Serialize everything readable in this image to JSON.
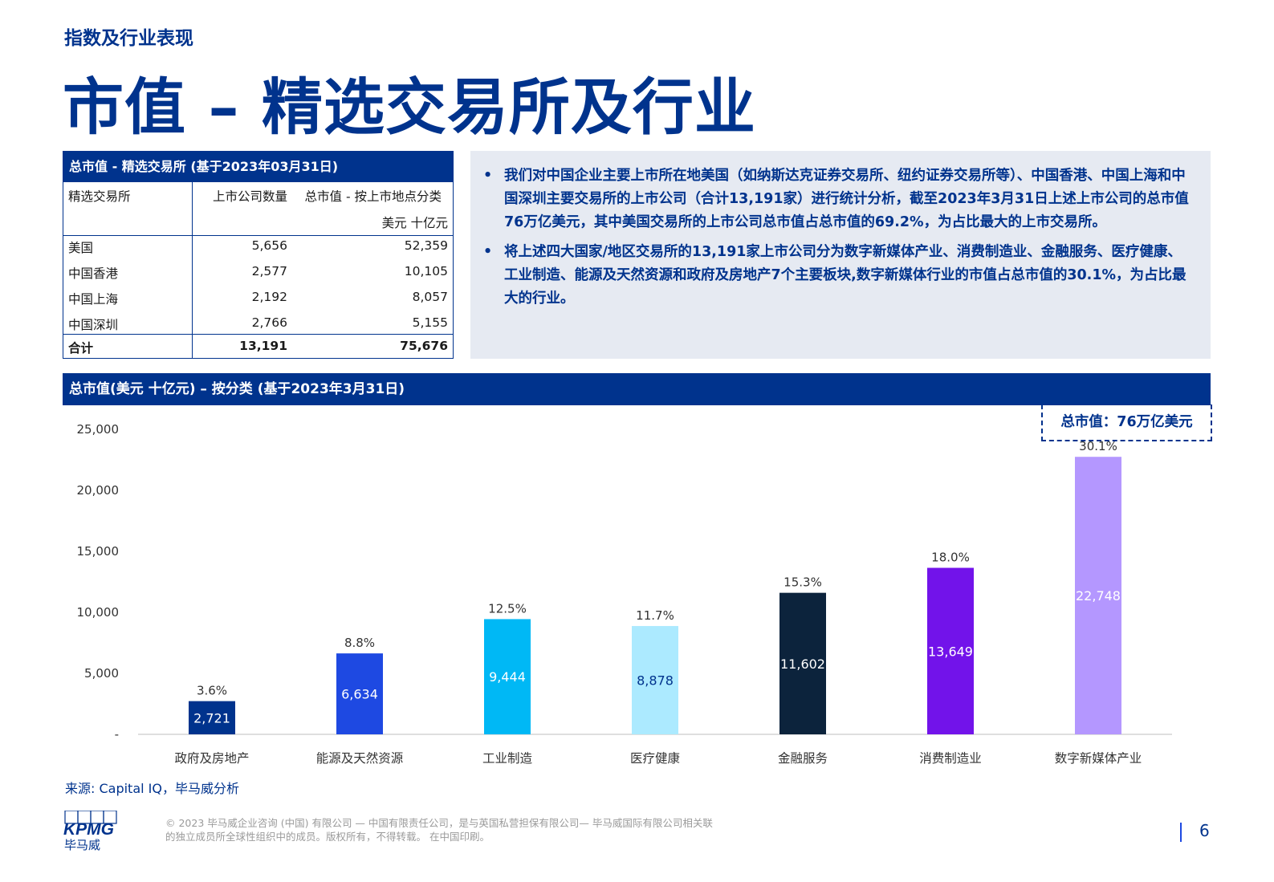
{
  "section_label": "指数及行业表现",
  "page_title": "市值 – 精选交易所及行业",
  "exchange_table": {
    "title": "总市值 - 精选交易所 (基于2023年03月31日)",
    "col_exchange": "精选交易所",
    "col_count": "上市公司数量",
    "col_value": "总市值 - 按上市地点分类",
    "unit": "美元 十亿元",
    "rows": [
      {
        "exchange": "美国",
        "count": "5,656",
        "value": "52,359"
      },
      {
        "exchange": "中国香港",
        "count": "2,577",
        "value": "10,105"
      },
      {
        "exchange": "中国上海",
        "count": "2,192",
        "value": "8,057"
      },
      {
        "exchange": "中国深圳",
        "count": "2,766",
        "value": "5,155"
      }
    ],
    "total": {
      "exchange": "合计",
      "count": "13,191",
      "value": "75,676"
    }
  },
  "info_bullets": [
    "我们对中国企业主要上市所在地美国（如纳斯达克证券交易所、纽约证券交易所等）、中国香港、中国上海和中国深圳主要交易所的上市公司（合计13,191家）进行统计分析，截至2023年3月31日上述上市公司的总市值76万亿美元，其中美国交易所的上市公司总市值占总市值的69.2%，为占比最大的上市交易所。",
    "将上述四大国家/地区交易所的13,191家上市公司分为数字新媒体产业、消费制造业、金融服务、医疗健康、工业制造、能源及天然资源和政府及房地产7个主要板块,数字新媒体行业的市值占总市值的30.1%，为占比最大的行业。"
  ],
  "chart_header": "总市值(美元 十亿元) – 按分类 (基于2023年3月31日)",
  "total_callout": "总市值：76万亿美元",
  "chart_data": {
    "type": "bar",
    "categories": [
      "政府及房地产",
      "能源及天然资源",
      "工业制造",
      "医疗健康",
      "金融服务",
      "消费制造业",
      "数字新媒体产业"
    ],
    "values": [
      2721,
      6634,
      9444,
      8878,
      11602,
      13649,
      22748
    ],
    "value_labels": [
      "2,721",
      "6,634",
      "9,444",
      "8,878",
      "11,602",
      "13,649",
      "22,748"
    ],
    "shares": [
      "3.6%",
      "8.8%",
      "12.5%",
      "11.7%",
      "15.3%",
      "18.0%",
      "30.1%"
    ],
    "bar_colors": [
      "#00338D",
      "#1E49E2",
      "#00B8F5",
      "#ACEAFF",
      "#0C233C",
      "#7213EA",
      "#B497FF"
    ],
    "label_colors": [
      "#ffffff",
      "#ffffff",
      "#ffffff",
      "#00338D",
      "#ffffff",
      "#ffffff",
      "#ffffff"
    ],
    "yticks": [
      0,
      5000,
      10000,
      15000,
      20000,
      25000
    ],
    "ytick_labels": [
      "-",
      "5,000",
      "10,000",
      "15,000",
      "20,000",
      "25,000"
    ],
    "ylim": [
      0,
      25000
    ],
    "grid": false,
    "title": "",
    "xlabel": "",
    "ylabel": ""
  },
  "source_note": "来源: Capital IQ，毕马威分析",
  "logo_text": "KPMG",
  "logo_cn": "毕马威",
  "copyright_lines": [
    "© 2023 毕马威企业咨询 (中国) 有限公司 — 中国有限责任公司，是与英国私营担保有限公司— 毕马威国际有限公司相关联",
    "的独立成员所全球性组织中的成员。版权所有，不得转载。 在中国印刷。"
  ],
  "page_number": "6",
  "colors": {
    "brand_blue": "#00338D",
    "info_bg": "#E6EAF2"
  }
}
